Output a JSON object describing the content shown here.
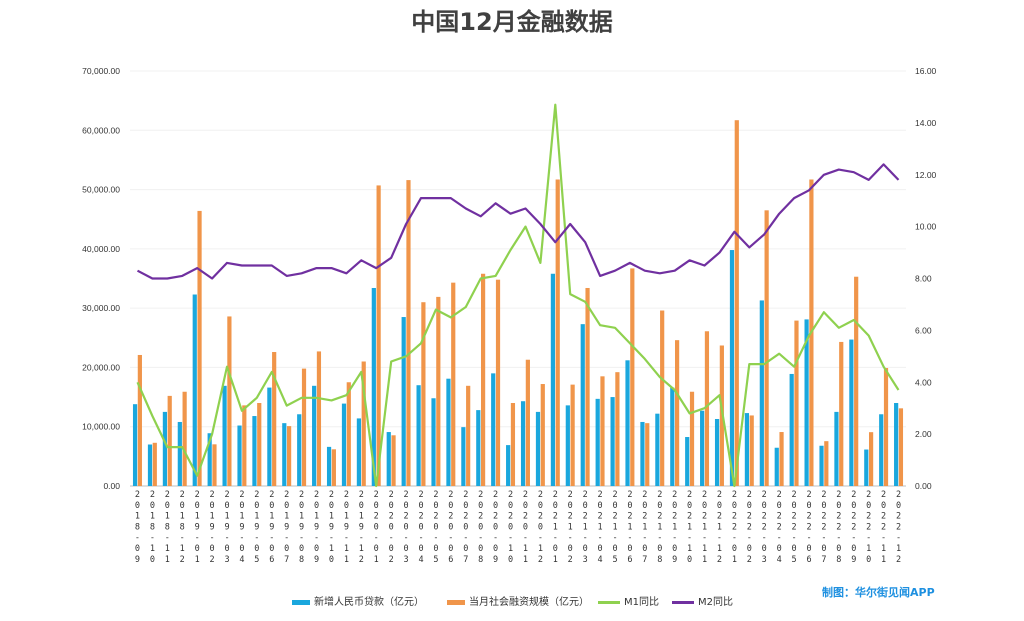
{
  "header": {
    "title": "中国12月金融数据",
    "credit": "制图：华尔街见闻APP"
  },
  "chart_data": {
    "type": "bar",
    "title": "中国12月金融数据",
    "categories": [
      "2018-09",
      "2018-10",
      "2018-11",
      "2018-12",
      "2019-01",
      "2019-02",
      "2019-03",
      "2019-04",
      "2019-05",
      "2019-06",
      "2019-07",
      "2019-08",
      "2019-09",
      "2019-10",
      "2019-11",
      "2019-12",
      "2020-01",
      "2020-02",
      "2020-03",
      "2020-04",
      "2020-05",
      "2020-06",
      "2020-07",
      "2020-08",
      "2020-09",
      "2020-10",
      "2020-11",
      "2020-12",
      "2021-01",
      "2021-02",
      "2021-03",
      "2021-04",
      "2021-05",
      "2021-06",
      "2021-07",
      "2021-08",
      "2021-09",
      "2021-10",
      "2021-11",
      "2021-12",
      "2022-01",
      "2022-02",
      "2022-03",
      "2022-04",
      "2022-05",
      "2022-06",
      "2022-07",
      "2022-08",
      "2022-09",
      "2022-10",
      "2022-11",
      "2022-12"
    ],
    "left_axis": {
      "min": 0,
      "max": 70000,
      "ticks": [
        "0.00",
        "10,000.00",
        "20,000.00",
        "30,000.00",
        "40,000.00",
        "50,000.00",
        "60,000.00",
        "70,000.00"
      ]
    },
    "right_axis": {
      "min": 0,
      "max": 16,
      "ticks": [
        "0.00",
        "2.00",
        "4.00",
        "6.00",
        "8.00",
        "10.00",
        "12.00",
        "14.00",
        "16.00"
      ]
    },
    "series": [
      {
        "name": "新增人民币贷款（亿元）",
        "type": "bar",
        "axis": "left",
        "color": "#1aa7dd",
        "values": [
          13800,
          7000,
          12500,
          10800,
          32300,
          8900,
          16900,
          10200,
          11800,
          16600,
          10600,
          12100,
          16900,
          6600,
          13900,
          11400,
          33400,
          9100,
          28500,
          17000,
          14800,
          18100,
          9927,
          12800,
          19000,
          6898,
          14300,
          12500,
          35800,
          13600,
          27300,
          14700,
          15000,
          21200,
          10800,
          12200,
          16600,
          8262,
          12700,
          11300,
          39800,
          12300,
          31300,
          6454,
          18900,
          28100,
          6790,
          12500,
          24700,
          6152,
          12100,
          14000
        ]
      },
      {
        "name": "当月社会融资规模（亿元）",
        "type": "bar",
        "axis": "left",
        "color": "#f0954a",
        "values": [
          22100,
          7288,
          15200,
          15898,
          46400,
          7030,
          28600,
          13600,
          14000,
          22600,
          10100,
          19800,
          22700,
          6189,
          17500,
          21000,
          50700,
          8554,
          51600,
          31000,
          31900,
          34300,
          16900,
          35800,
          34800,
          14000,
          21300,
          17200,
          51700,
          17100,
          33400,
          18500,
          19200,
          36700,
          10600,
          29600,
          24600,
          15900,
          26100,
          23700,
          61700,
          11900,
          46500,
          9102,
          27900,
          51700,
          7561,
          24300,
          35300,
          9079,
          19900,
          13100
        ]
      },
      {
        "name": "M1同比",
        "type": "line",
        "axis": "right",
        "color": "#8fd14f",
        "values": [
          4.0,
          2.7,
          1.5,
          1.5,
          0.4,
          2.0,
          4.6,
          2.9,
          3.4,
          4.4,
          3.1,
          3.4,
          3.4,
          3.3,
          3.5,
          4.4,
          0.0,
          4.8,
          5.0,
          5.5,
          6.8,
          6.5,
          6.9,
          8.0,
          8.1,
          9.1,
          10.0,
          8.6,
          14.7,
          7.4,
          7.1,
          6.2,
          6.1,
          5.5,
          4.9,
          4.2,
          3.7,
          2.8,
          3.0,
          3.5,
          -1.9,
          4.7,
          4.7,
          5.1,
          4.6,
          5.8,
          6.7,
          6.1,
          6.4,
          5.8,
          4.6,
          3.7
        ]
      },
      {
        "name": "M2同比",
        "type": "line",
        "axis": "right",
        "color": "#7030a0",
        "values": [
          8.3,
          8.0,
          8.0,
          8.1,
          8.4,
          8.0,
          8.6,
          8.5,
          8.5,
          8.5,
          8.1,
          8.2,
          8.4,
          8.4,
          8.2,
          8.7,
          8.4,
          8.8,
          10.1,
          11.1,
          11.1,
          11.1,
          10.7,
          10.4,
          10.9,
          10.5,
          10.7,
          10.1,
          9.4,
          10.1,
          9.4,
          8.1,
          8.3,
          8.6,
          8.3,
          8.2,
          8.3,
          8.7,
          8.5,
          9.0,
          9.8,
          9.2,
          9.7,
          10.5,
          11.1,
          11.4,
          12.0,
          12.2,
          12.1,
          11.8,
          12.4,
          11.8
        ]
      }
    ],
    "grid": true,
    "legend": "bottom"
  }
}
